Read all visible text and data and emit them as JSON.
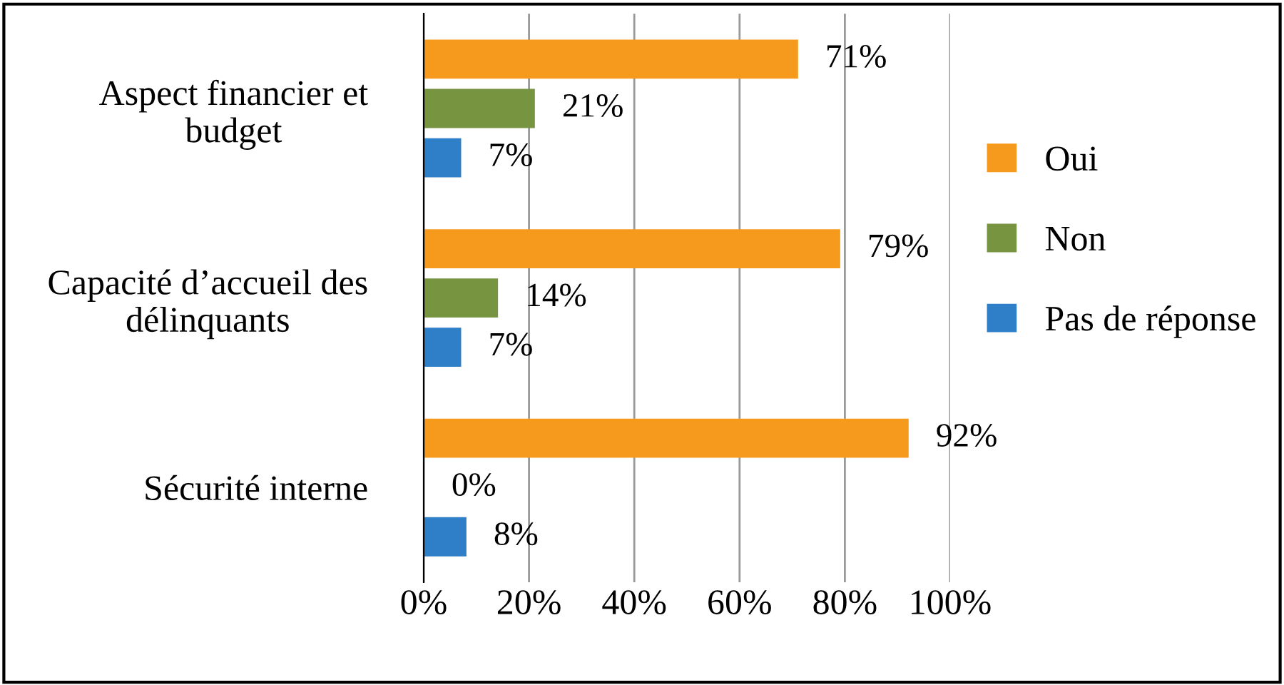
{
  "chart_data": {
    "type": "bar",
    "orientation": "horizontal",
    "categories": [
      "Aspect financier et budget",
      "Capacité d’accueil des délinquants",
      "Sécurité interne"
    ],
    "series": [
      {
        "name": "Oui",
        "color": "#f59a1d",
        "values": [
          71,
          79,
          92
        ],
        "value_labels": [
          "71%",
          "79%",
          "92%"
        ]
      },
      {
        "name": "Non",
        "color": "#779440",
        "values": [
          21,
          14,
          0
        ],
        "value_labels": [
          "21%",
          "14%",
          "0%"
        ]
      },
      {
        "name": "Pas de réponse",
        "color": "#2f7fc8",
        "values": [
          7,
          7,
          8
        ],
        "value_labels": [
          "7%",
          "7%",
          "8%"
        ]
      }
    ],
    "xlim": [
      0,
      100
    ],
    "xticks": [
      {
        "value": 0,
        "label": "0%"
      },
      {
        "value": 20,
        "label": "20%"
      },
      {
        "value": 40,
        "label": "40%"
      },
      {
        "value": 60,
        "label": "60%"
      },
      {
        "value": 80,
        "label": "80%"
      },
      {
        "value": 100,
        "label": "100%"
      }
    ],
    "grid": "x",
    "legend": "right"
  }
}
